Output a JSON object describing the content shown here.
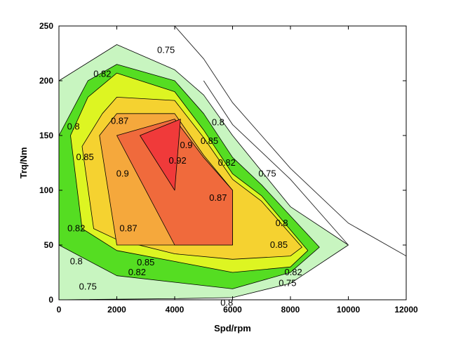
{
  "chart_data": {
    "type": "contour",
    "xlabel": "Spd/rpm",
    "ylabel": "Trq/Nm",
    "xlim": [
      0,
      12000
    ],
    "ylim": [
      0,
      250
    ],
    "xticks": [
      0,
      2000,
      4000,
      6000,
      8000,
      10000,
      12000
    ],
    "yticks": [
      0,
      50,
      100,
      150,
      200,
      250
    ],
    "colors": {
      "0.75": "#c8f5c0",
      "0.8": "#55dd22",
      "0.82": "#ddf522",
      "0.85": "#f5d230",
      "0.87": "#f5a83c",
      "0.9": "#f06a3c",
      "0.92": "#f03a3a"
    },
    "regions": [
      {
        "level": "0.75",
        "points": [
          [
            0,
            0
          ],
          [
            0,
            200
          ],
          [
            2000,
            233
          ],
          [
            4000,
            210
          ],
          [
            5000,
            187
          ],
          [
            6000,
            150
          ],
          [
            8000,
            85
          ],
          [
            10000,
            50
          ],
          [
            8000,
            15
          ],
          [
            6000,
            2
          ],
          [
            4000,
            1
          ],
          [
            0,
            0
          ]
        ]
      },
      {
        "level": "0.8",
        "points": [
          [
            0,
            50
          ],
          [
            0,
            150
          ],
          [
            1000,
            200
          ],
          [
            2000,
            215
          ],
          [
            4000,
            200
          ],
          [
            5000,
            170
          ],
          [
            6000,
            130
          ],
          [
            7000,
            105
          ],
          [
            9000,
            48
          ],
          [
            8000,
            25
          ],
          [
            6000,
            10
          ],
          [
            2000,
            22
          ],
          [
            0,
            50
          ]
        ]
      },
      {
        "level": "0.82",
        "points": [
          [
            800,
            65
          ],
          [
            400,
            150
          ],
          [
            1000,
            185
          ],
          [
            2000,
            207
          ],
          [
            4000,
            190
          ],
          [
            5000,
            155
          ],
          [
            6000,
            115
          ],
          [
            7000,
            95
          ],
          [
            8600,
            45
          ],
          [
            8000,
            30
          ],
          [
            6000,
            25
          ],
          [
            4000,
            35
          ],
          [
            2000,
            45
          ],
          [
            800,
            65
          ]
        ]
      },
      {
        "level": "0.85",
        "points": [
          [
            1200,
            65
          ],
          [
            800,
            140
          ],
          [
            1500,
            170
          ],
          [
            2000,
            185
          ],
          [
            4000,
            182
          ],
          [
            5000,
            148
          ],
          [
            6000,
            110
          ],
          [
            7000,
            90
          ],
          [
            8400,
            48
          ],
          [
            8000,
            40
          ],
          [
            6000,
            37
          ],
          [
            4000,
            42
          ],
          [
            2000,
            55
          ],
          [
            1200,
            65
          ]
        ]
      },
      {
        "level": "0.87",
        "points": [
          [
            2000,
            50
          ],
          [
            1400,
            150
          ],
          [
            2000,
            170
          ],
          [
            4000,
            170
          ],
          [
            5000,
            132
          ],
          [
            6000,
            100
          ],
          [
            6000,
            50
          ],
          [
            2000,
            50
          ]
        ]
      },
      {
        "level": "0.9",
        "points": [
          [
            4000,
            50
          ],
          [
            6000,
            50
          ],
          [
            6000,
            100
          ],
          [
            5000,
            130
          ],
          [
            4000,
            165
          ],
          [
            2000,
            150
          ],
          [
            4000,
            50
          ]
        ]
      },
      {
        "level": "0.92",
        "points": [
          [
            2800,
            150
          ],
          [
            4000,
            100
          ],
          [
            4200,
            165
          ],
          [
            2800,
            150
          ]
        ]
      }
    ],
    "extra_lines": [
      {
        "name": "max-torque-curve-1",
        "points": [
          [
            4000,
            250
          ],
          [
            5000,
            220
          ],
          [
            6000,
            180
          ],
          [
            8000,
            120
          ],
          [
            10000,
            70
          ],
          [
            12000,
            40
          ]
        ]
      },
      {
        "name": "max-torque-curve-2",
        "points": [
          [
            5000,
            200
          ],
          [
            6000,
            160
          ],
          [
            8000,
            110
          ],
          [
            10000,
            50
          ]
        ]
      }
    ],
    "labels": [
      {
        "text": "0.75",
        "x": 3700,
        "y": 228
      },
      {
        "text": "0.82",
        "x": 1500,
        "y": 206
      },
      {
        "text": "0.8",
        "x": 500,
        "y": 158
      },
      {
        "text": "0.87",
        "x": 2100,
        "y": 163
      },
      {
        "text": "0.8",
        "x": 5500,
        "y": 162
      },
      {
        "text": "0.85",
        "x": 5200,
        "y": 145
      },
      {
        "text": "0.9",
        "x": 4400,
        "y": 141
      },
      {
        "text": "0.92",
        "x": 4100,
        "y": 127
      },
      {
        "text": "0.85",
        "x": 900,
        "y": 130
      },
      {
        "text": "0.82",
        "x": 5800,
        "y": 125
      },
      {
        "text": "0.9",
        "x": 2200,
        "y": 115
      },
      {
        "text": "0.75",
        "x": 7200,
        "y": 115
      },
      {
        "text": "0.87",
        "x": 5500,
        "y": 93
      },
      {
        "text": "0.8",
        "x": 7700,
        "y": 70
      },
      {
        "text": "0.82",
        "x": 600,
        "y": 65
      },
      {
        "text": "0.87",
        "x": 2400,
        "y": 65
      },
      {
        "text": "0.85",
        "x": 7600,
        "y": 50
      },
      {
        "text": "0.8",
        "x": 600,
        "y": 35
      },
      {
        "text": "0.85",
        "x": 3000,
        "y": 34
      },
      {
        "text": "0.82",
        "x": 2700,
        "y": 25
      },
      {
        "text": "0.82",
        "x": 8100,
        "y": 25
      },
      {
        "text": "0.75",
        "x": 1000,
        "y": 12
      },
      {
        "text": "0.75",
        "x": 7900,
        "y": 15
      },
      {
        "text": "0.8",
        "x": 5800,
        "y": -3
      }
    ]
  }
}
